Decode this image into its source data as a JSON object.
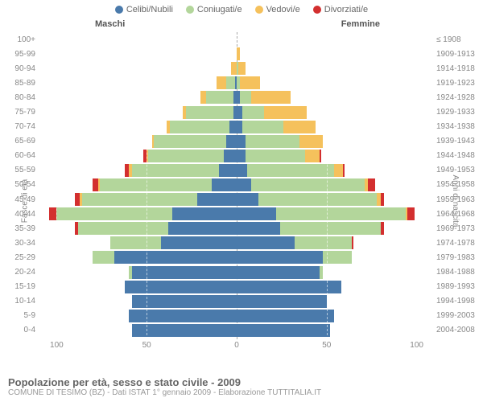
{
  "chart": {
    "type": "population-pyramid",
    "background_color": "#ffffff",
    "grid_color": "#ffffff",
    "axis_dash_color": "#aaaaaa",
    "label_color": "#888888",
    "fontsize_labels": 10,
    "fontsize_header": 11,
    "xlim": 110,
    "xticks": [
      100,
      50,
      0,
      50,
      100
    ],
    "ylabel_left": "Fasce di età",
    "ylabel_right": "Anni di nascita",
    "header_left": "Maschi",
    "header_right": "Femmine",
    "legend": [
      {
        "label": "Celibi/Nubili",
        "color": "#4a7aab"
      },
      {
        "label": "Coniugati/e",
        "color": "#b3d69b"
      },
      {
        "label": "Vedovi/e",
        "color": "#f5c15c"
      },
      {
        "label": "Divorziati/e",
        "color": "#d32f2f"
      }
    ],
    "rows": [
      {
        "ageband": "100+",
        "birth": "≤ 1908",
        "m": [
          0,
          0,
          0,
          0
        ],
        "f": [
          0,
          0,
          0,
          0
        ]
      },
      {
        "ageband": "95-99",
        "birth": "1909-1913",
        "m": [
          0,
          0,
          0,
          0
        ],
        "f": [
          0,
          0,
          2,
          0
        ]
      },
      {
        "ageband": "90-94",
        "birth": "1914-1918",
        "m": [
          0,
          0,
          3,
          0
        ],
        "f": [
          0,
          1,
          4,
          0
        ]
      },
      {
        "ageband": "85-89",
        "birth": "1919-1923",
        "m": [
          1,
          5,
          5,
          0
        ],
        "f": [
          0,
          2,
          11,
          0
        ]
      },
      {
        "ageband": "80-84",
        "birth": "1924-1928",
        "m": [
          2,
          15,
          3,
          0
        ],
        "f": [
          2,
          6,
          22,
          0
        ]
      },
      {
        "ageband": "75-79",
        "birth": "1929-1933",
        "m": [
          2,
          26,
          2,
          0
        ],
        "f": [
          3,
          12,
          24,
          0
        ]
      },
      {
        "ageband": "70-74",
        "birth": "1934-1938",
        "m": [
          4,
          33,
          2,
          0
        ],
        "f": [
          3,
          23,
          18,
          0
        ]
      },
      {
        "ageband": "65-69",
        "birth": "1939-1943",
        "m": [
          6,
          40,
          1,
          0
        ],
        "f": [
          5,
          30,
          13,
          0
        ]
      },
      {
        "ageband": "60-64",
        "birth": "1944-1948",
        "m": [
          7,
          42,
          1,
          2
        ],
        "f": [
          5,
          33,
          8,
          1
        ]
      },
      {
        "ageband": "55-59",
        "birth": "1949-1953",
        "m": [
          10,
          48,
          2,
          2
        ],
        "f": [
          6,
          48,
          5,
          1
        ]
      },
      {
        "ageband": "50-54",
        "birth": "1954-1958",
        "m": [
          14,
          62,
          1,
          3
        ],
        "f": [
          8,
          63,
          2,
          4
        ]
      },
      {
        "ageband": "45-49",
        "birth": "1959-1963",
        "m": [
          22,
          64,
          1,
          3
        ],
        "f": [
          12,
          66,
          2,
          2
        ]
      },
      {
        "ageband": "40-44",
        "birth": "1964-1968",
        "m": [
          36,
          64,
          0,
          4
        ],
        "f": [
          22,
          72,
          1,
          4
        ]
      },
      {
        "ageband": "35-39",
        "birth": "1969-1973",
        "m": [
          38,
          50,
          0,
          2
        ],
        "f": [
          24,
          56,
          0,
          2
        ]
      },
      {
        "ageband": "30-34",
        "birth": "1974-1978",
        "m": [
          42,
          28,
          0,
          0
        ],
        "f": [
          32,
          32,
          0,
          1
        ]
      },
      {
        "ageband": "25-29",
        "birth": "1979-1983",
        "m": [
          68,
          12,
          0,
          0
        ],
        "f": [
          48,
          16,
          0,
          0
        ]
      },
      {
        "ageband": "20-24",
        "birth": "1984-1988",
        "m": [
          58,
          2,
          0,
          0
        ],
        "f": [
          46,
          2,
          0,
          0
        ]
      },
      {
        "ageband": "15-19",
        "birth": "1989-1993",
        "m": [
          62,
          0,
          0,
          0
        ],
        "f": [
          58,
          0,
          0,
          0
        ]
      },
      {
        "ageband": "10-14",
        "birth": "1994-1998",
        "m": [
          58,
          0,
          0,
          0
        ],
        "f": [
          50,
          0,
          0,
          0
        ]
      },
      {
        "ageband": "5-9",
        "birth": "1999-2003",
        "m": [
          60,
          0,
          0,
          0
        ],
        "f": [
          54,
          0,
          0,
          0
        ]
      },
      {
        "ageband": "0-4",
        "birth": "2004-2008",
        "m": [
          58,
          0,
          0,
          0
        ],
        "f": [
          52,
          0,
          0,
          0
        ]
      }
    ]
  },
  "footer": {
    "title": "Popolazione per età, sesso e stato civile - 2009",
    "subtitle": "COMUNE DI TESIMO (BZ) - Dati ISTAT 1° gennaio 2009 - Elaborazione TUTTITALIA.IT"
  }
}
